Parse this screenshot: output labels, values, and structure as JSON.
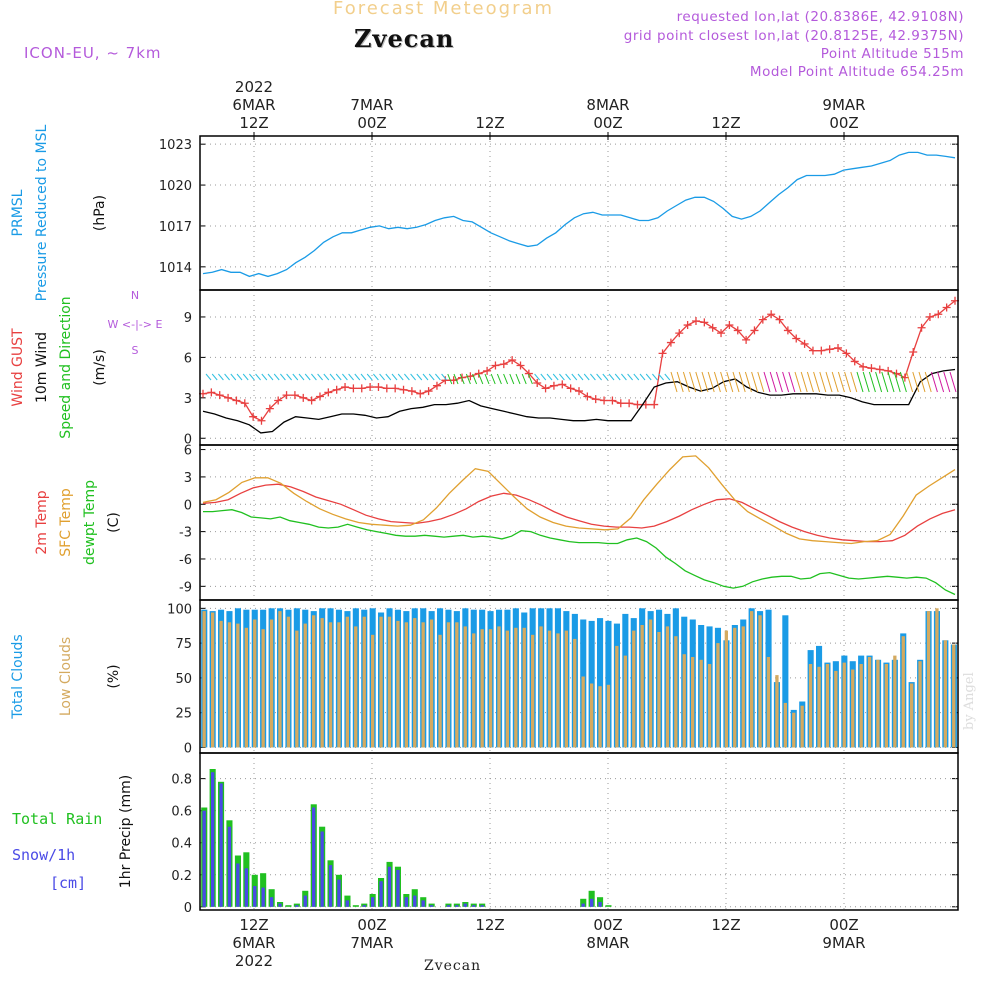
{
  "header": {
    "title": "Forecast Meteogram",
    "location": "Zvecan",
    "model": "ICON-EU, ~ 7km",
    "requested": "requested lon,lat (20.8386E, 42.9108N)",
    "gridpoint": "grid point closest lon,lat (20.8125E, 42.9375N)",
    "point_alt": "Point Altitude 515m",
    "model_alt": "Model Point Altitude 654.25m"
  },
  "footer": {
    "location": "Zvecan",
    "signature": "by Angel"
  },
  "time_axis": {
    "hours": 60,
    "top_labels": [
      {
        "h": 0,
        "lines": [
          "2022",
          "6MAR",
          "12Z"
        ]
      },
      {
        "h": 12,
        "lines": [
          "7MAR",
          "00Z"
        ]
      },
      {
        "h": 24,
        "lines": [
          "12Z"
        ]
      },
      {
        "h": 36,
        "lines": [
          "8MAR",
          "00Z"
        ]
      },
      {
        "h": 48,
        "lines": [
          "12Z"
        ]
      },
      {
        "h": 60,
        "lines": [
          "9MAR",
          "00Z"
        ]
      }
    ],
    "bottom_labels": [
      {
        "h": 0,
        "lines": [
          "12Z",
          "6MAR",
          "2022"
        ]
      },
      {
        "h": 12,
        "lines": [
          "00Z",
          "7MAR"
        ]
      },
      {
        "h": 24,
        "lines": [
          "12Z"
        ]
      },
      {
        "h": 36,
        "lines": [
          "00Z",
          "8MAR"
        ]
      },
      {
        "h": 48,
        "lines": [
          "12Z"
        ]
      },
      {
        "h": 60,
        "lines": [
          "00Z",
          "9MAR"
        ]
      }
    ]
  },
  "colors": {
    "pressure": "#1a9be6",
    "gust": "#e84040",
    "wind": "#000000",
    "arrows": "#20c020",
    "temp2m": "#e84040",
    "sfc": "#e0a030",
    "dew": "#20c020",
    "total_clouds": "#1a9be6",
    "low_clouds": "#d4aa60",
    "rain": "#20c020",
    "snow": "#4a4ae6",
    "grid": "#999999",
    "compass": "#b45adb"
  },
  "chart_data": [
    {
      "type": "line",
      "panel": "pressure",
      "ylabels": [
        "PRMSL",
        "Pressure Reduced to MSL",
        "(hPa)"
      ],
      "yticks": [
        1014,
        1017,
        1020,
        1023
      ],
      "ylim": [
        1012.3,
        1023.6
      ],
      "series": [
        {
          "name": "PRMSL",
          "color_key": "pressure",
          "values": [
            1013.5,
            1013.6,
            1013.8,
            1013.6,
            1013.6,
            1013.3,
            1013.5,
            1013.3,
            1013.5,
            1013.8,
            1014.3,
            1014.7,
            1015.2,
            1015.8,
            1016.2,
            1016.5,
            1016.5,
            1016.7,
            1016.9,
            1017.0,
            1016.8,
            1016.9,
            1016.8,
            1016.9,
            1017.1,
            1017.4,
            1017.6,
            1017.7,
            1017.4,
            1017.3,
            1016.9,
            1016.5,
            1016.2,
            1015.9,
            1015.7,
            1015.5,
            1015.6,
            1016.1,
            1016.5,
            1017.1,
            1017.6,
            1017.9,
            1018.0,
            1017.8,
            1017.8,
            1017.8,
            1017.6,
            1017.4,
            1017.4,
            1017.6,
            1018.1,
            1018.5,
            1018.9,
            1019.1,
            1019.1,
            1018.8,
            1018.3,
            1017.7,
            1017.5,
            1017.7,
            1018.1,
            1018.7,
            1019.3,
            1019.8,
            1020.4,
            1020.7,
            1020.7,
            1020.7,
            1020.8,
            1021.1,
            1021.2,
            1021.3,
            1021.4,
            1021.6,
            1021.8,
            1022.2,
            1022.4,
            1022.4,
            1022.2,
            1022.2,
            1022.1,
            1022.0
          ]
        }
      ]
    },
    {
      "type": "line",
      "panel": "wind",
      "ylabels": [
        "Wind GUST",
        "10m Wind",
        "Speed and Direction",
        "(m/s)"
      ],
      "compass": [
        "N",
        "W <-|-> E",
        "S"
      ],
      "yticks": [
        0,
        3,
        6,
        9
      ],
      "ylim": [
        -0.5,
        11
      ],
      "series": [
        {
          "name": "Wind GUST",
          "color_key": "gust",
          "markers": "plus",
          "values": [
            3.3,
            3.4,
            3.2,
            3.0,
            2.8,
            2.6,
            1.6,
            1.3,
            2.2,
            2.8,
            3.2,
            3.2,
            3.0,
            2.8,
            3.1,
            3.4,
            3.6,
            3.8,
            3.7,
            3.7,
            3.8,
            3.8,
            3.7,
            3.7,
            3.6,
            3.5,
            3.3,
            3.5,
            3.9,
            4.3,
            4.3,
            4.5,
            4.6,
            4.8,
            5.0,
            5.4,
            5.5,
            5.8,
            5.4,
            4.8,
            4.1,
            3.7,
            3.9,
            4.0,
            3.7,
            3.5,
            3.1,
            2.9,
            2.8,
            2.8,
            2.6,
            2.6,
            2.5,
            2.5,
            2.5,
            6.3,
            7.1,
            7.8,
            8.4,
            8.7,
            8.6,
            8.2,
            7.8,
            8.4,
            8.0,
            7.3,
            8.0,
            8.8,
            9.2,
            8.8,
            8.0,
            7.4,
            7.0,
            6.5,
            6.5,
            6.6,
            6.7,
            6.3,
            5.7,
            5.3,
            5.2,
            5.1,
            5.0,
            4.8,
            4.5,
            6.4,
            8.2,
            9.0,
            9.2,
            9.7,
            10.2
          ]
        },
        {
          "name": "10m Wind",
          "color_key": "wind",
          "values": [
            2.0,
            1.8,
            1.5,
            1.3,
            1.0,
            0.4,
            0.5,
            1.2,
            1.6,
            1.5,
            1.4,
            1.6,
            1.8,
            1.8,
            1.7,
            1.5,
            1.6,
            2.0,
            2.2,
            2.3,
            2.5,
            2.5,
            2.6,
            2.8,
            2.4,
            2.2,
            2.0,
            1.8,
            1.6,
            1.5,
            1.5,
            1.4,
            1.3,
            1.3,
            1.4,
            1.3,
            1.3,
            1.3,
            2.5,
            3.8,
            4.1,
            4.2,
            3.8,
            3.5,
            3.7,
            4.2,
            4.4,
            3.8,
            3.4,
            3.2,
            3.2,
            3.3,
            3.3,
            3.3,
            3.2,
            3.2,
            3.0,
            2.7,
            2.5,
            2.5,
            2.5,
            2.5,
            4.2,
            4.8,
            5.0,
            5.1
          ]
        }
      ]
    },
    {
      "type": "line",
      "panel": "temperature",
      "ylabels": [
        "2m Temp",
        "SFC Temp",
        "dewpt Temp",
        "(C)"
      ],
      "yticks": [
        -9,
        -6,
        -3,
        0,
        3,
        6
      ],
      "ylim": [
        -10.5,
        6.5
      ],
      "series": [
        {
          "name": "2m Temp",
          "color_key": "temp2m",
          "values": [
            0.1,
            0.2,
            0.5,
            1.2,
            1.8,
            2.1,
            2.2,
            1.9,
            1.4,
            0.8,
            0.4,
            0.0,
            -0.6,
            -1.2,
            -1.6,
            -1.9,
            -2.0,
            -2.1,
            -1.9,
            -1.6,
            -1.1,
            -0.5,
            0.3,
            0.9,
            1.2,
            1.0,
            0.5,
            -0.1,
            -0.8,
            -1.4,
            -1.8,
            -2.2,
            -2.4,
            -2.5,
            -2.5,
            -2.6,
            -2.4,
            -1.9,
            -1.3,
            -0.6,
            0.0,
            0.5,
            0.6,
            0.2,
            -0.5,
            -1.2,
            -1.9,
            -2.5,
            -3.0,
            -3.4,
            -3.7,
            -3.9,
            -4.0,
            -4.1,
            -4.1,
            -4.0,
            -3.4,
            -2.4,
            -1.6,
            -1.0,
            -0.6
          ]
        },
        {
          "name": "SFC Temp",
          "color_key": "sfc",
          "values": [
            0.2,
            0.5,
            1.3,
            2.4,
            2.9,
            2.9,
            2.3,
            1.2,
            0.3,
            -0.5,
            -1.1,
            -1.6,
            -2.0,
            -2.2,
            -2.3,
            -2.4,
            -2.3,
            -1.7,
            -0.4,
            1.2,
            2.6,
            3.9,
            3.6,
            2.2,
            0.8,
            -0.5,
            -1.4,
            -2.0,
            -2.4,
            -2.6,
            -2.7,
            -2.8,
            -2.7,
            -1.5,
            0.5,
            2.2,
            3.8,
            5.2,
            5.3,
            4.0,
            2.2,
            0.5,
            -0.8,
            -1.6,
            -2.4,
            -3.2,
            -3.8,
            -4.0,
            -4.1,
            -4.2,
            -4.3,
            -4.1,
            -4.0,
            -3.3,
            -1.3,
            1.0,
            2.0,
            2.9,
            3.8
          ]
        },
        {
          "name": "dewpt Temp",
          "color_key": "dew",
          "values": [
            -0.8,
            -0.8,
            -0.7,
            -0.6,
            -0.9,
            -1.4,
            -1.5,
            -1.6,
            -1.4,
            -1.8,
            -2.0,
            -2.2,
            -2.5,
            -2.6,
            -2.5,
            -2.2,
            -2.5,
            -2.8,
            -3.0,
            -3.2,
            -3.4,
            -3.5,
            -3.5,
            -3.4,
            -3.5,
            -3.6,
            -3.5,
            -3.4,
            -3.6,
            -3.5,
            -3.6,
            -3.8,
            -3.5,
            -2.9,
            -3.0,
            -3.4,
            -3.7,
            -3.9,
            -4.1,
            -4.2,
            -4.2,
            -4.2,
            -4.3,
            -4.3,
            -3.9,
            -3.7,
            -4.1,
            -4.8,
            -5.8,
            -6.5,
            -7.3,
            -7.8,
            -8.3,
            -8.6,
            -9.0,
            -9.2,
            -9.0,
            -8.5,
            -8.2,
            -8.0,
            -7.9,
            -7.9,
            -8.2,
            -8.1,
            -7.6,
            -7.5,
            -7.8,
            -8.1,
            -8.2,
            -8.1,
            -8.0,
            -7.9,
            -8.0,
            -8.1,
            -8.0,
            -8.1,
            -8.6,
            -9.4,
            -9.9
          ]
        }
      ]
    },
    {
      "type": "bar",
      "panel": "clouds",
      "ylabels": [
        "Total Clouds",
        "Low Clouds",
        "(%)"
      ],
      "yticks": [
        0,
        25,
        50,
        75,
        100
      ],
      "ylim": [
        -4,
        106
      ],
      "series": [
        {
          "name": "Total Clouds",
          "color_key": "total_clouds",
          "values": [
            99,
            98,
            99,
            98,
            100,
            99,
            99,
            99,
            100,
            100,
            99,
            100,
            99,
            98,
            100,
            100,
            99,
            98,
            100,
            99,
            100,
            97,
            100,
            99,
            98,
            100,
            100,
            98,
            100,
            99,
            98,
            100,
            99,
            99,
            98,
            99,
            99,
            100,
            97,
            100,
            100,
            100,
            100,
            98,
            96,
            92,
            91,
            93,
            91,
            89,
            96,
            93,
            100,
            98,
            99,
            96,
            100,
            94,
            92,
            88,
            87,
            86,
            77,
            88,
            92,
            100,
            98,
            99,
            47,
            95,
            27,
            33,
            70,
            73,
            61,
            62,
            66,
            62,
            66,
            66,
            63,
            61,
            63,
            82,
            47,
            63,
            98,
            98,
            77,
            74
          ]
        },
        {
          "name": "Low Clouds",
          "color_key": "low_clouds",
          "values": [
            98,
            97,
            91,
            90,
            89,
            86,
            92,
            85,
            92,
            98,
            94,
            84,
            89,
            95,
            93,
            90,
            90,
            94,
            87,
            94,
            81,
            94,
            94,
            91,
            90,
            93,
            90,
            92,
            81,
            90,
            90,
            87,
            82,
            85,
            85,
            87,
            84,
            86,
            86,
            81,
            87,
            84,
            82,
            84,
            78,
            51,
            46,
            44,
            45,
            73,
            66,
            84,
            88,
            92,
            83,
            87,
            80,
            67,
            65,
            63,
            60,
            75,
            84,
            86,
            87,
            98,
            95,
            65,
            52,
            32,
            25,
            30,
            60,
            58,
            60,
            55,
            61,
            56,
            60,
            65,
            63,
            60,
            66,
            80,
            46,
            62,
            98,
            100,
            77,
            74
          ]
        }
      ]
    },
    {
      "type": "bar",
      "panel": "precip",
      "ylabels": [
        "Total Rain",
        "Snow/1h",
        "[cm]",
        "1hr Precip (mm)"
      ],
      "yticks": [
        0,
        0.2,
        0.4,
        0.6,
        0.8
      ],
      "ylim": [
        -0.02,
        0.96
      ],
      "series": [
        {
          "name": "Total Rain",
          "color_key": "rain",
          "values": [
            0.62,
            0.86,
            0.78,
            0.54,
            0.32,
            0.34,
            0.2,
            0.21,
            0.11,
            0.03,
            0.01,
            0.02,
            0.1,
            0.64,
            0.5,
            0.29,
            0.2,
            0.07,
            0.01,
            0.02,
            0.08,
            0.18,
            0.28,
            0.25,
            0.08,
            0.11,
            0.06,
            0.02,
            0.0,
            0.02,
            0.02,
            0.03,
            0.02,
            0.02,
            0.0,
            0.0,
            0.0,
            0.0,
            0.0,
            0.0,
            0.0,
            0.0,
            0.0,
            0.0,
            0.0,
            0.05,
            0.1,
            0.06,
            0.01,
            0.0,
            0.0,
            0.0,
            0.0,
            0.0,
            0.0,
            0.0,
            0.0,
            0.0,
            0.0,
            0.0,
            0.0,
            0.0,
            0.0,
            0.0,
            0.0,
            0.0,
            0.0,
            0.0,
            0.0,
            0.0,
            0.0,
            0.0,
            0.0,
            0.0,
            0.0,
            0.0,
            0.0,
            0.0,
            0.0,
            0.0,
            0.0,
            0.0,
            0.0,
            0.0,
            0.0,
            0.0,
            0.0,
            0.0,
            0.0,
            0.0
          ]
        },
        {
          "name": "Snow/1h",
          "color_key": "snow",
          "values": [
            0.6,
            0.84,
            0.77,
            0.5,
            0.27,
            0.24,
            0.13,
            0.12,
            0.06,
            0.02,
            0.0,
            0.01,
            0.07,
            0.62,
            0.47,
            0.26,
            0.17,
            0.04,
            0.0,
            0.01,
            0.06,
            0.16,
            0.25,
            0.23,
            0.06,
            0.07,
            0.04,
            0.01,
            0.0,
            0.01,
            0.01,
            0.02,
            0.01,
            0.01,
            0.0,
            0.0,
            0.0,
            0.0,
            0.0,
            0.0,
            0.0,
            0.0,
            0.0,
            0.0,
            0.0,
            0.02,
            0.05,
            0.03,
            0.0,
            0.0,
            0.0,
            0.0,
            0.0,
            0.0,
            0.0,
            0.0,
            0.0,
            0.0,
            0.0,
            0.0,
            0.0,
            0.0,
            0.0,
            0.0,
            0.0,
            0.0,
            0.0,
            0.0,
            0.0,
            0.0,
            0.0,
            0.0,
            0.0,
            0.0,
            0.0,
            0.0,
            0.0,
            0.0,
            0.0,
            0.0,
            0.0,
            0.0,
            0.0,
            0.0,
            0.0,
            0.0,
            0.0,
            0.0,
            0.0,
            0.0
          ]
        }
      ]
    }
  ]
}
